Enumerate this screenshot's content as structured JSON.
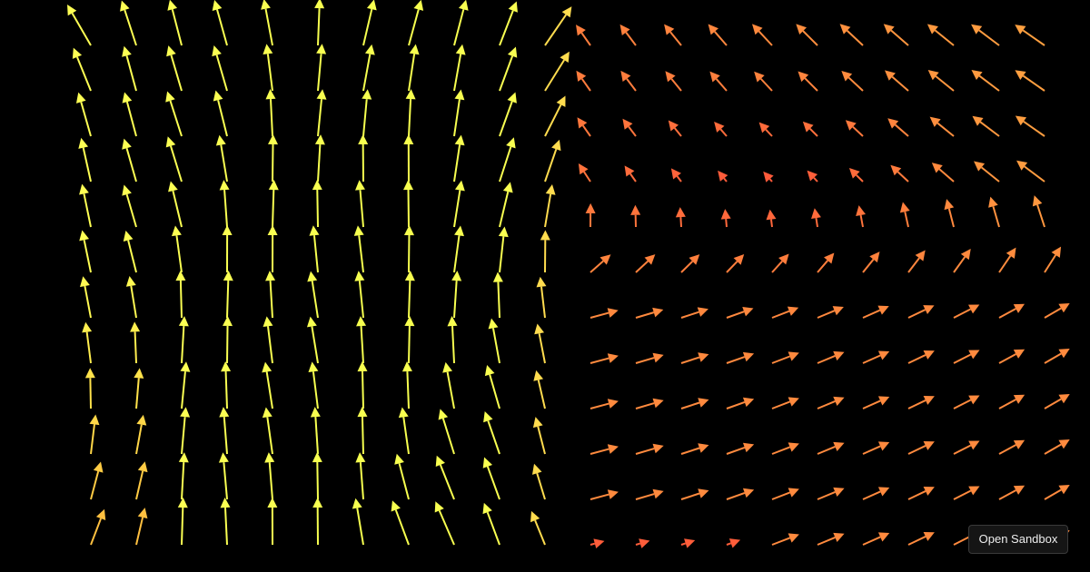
{
  "button": {
    "label": "Open Sandbox"
  }
}
